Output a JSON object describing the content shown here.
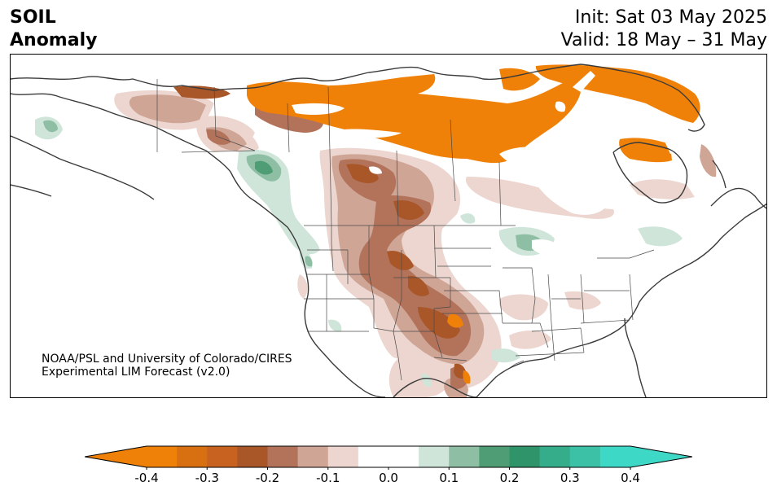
{
  "header": {
    "variable": "SOIL",
    "quantity": "Anomaly",
    "init": "Init: Sat 03 May 2025",
    "valid": "Valid: 18 May – 31 May"
  },
  "credit": {
    "line1": "NOAA/PSL and University of Colorado/CIRES",
    "line2": "Experimental LIM Forecast (v2.0)"
  },
  "colorbar": {
    "levels": [
      -0.4,
      -0.35,
      -0.3,
      -0.25,
      -0.2,
      -0.15,
      -0.1,
      -0.05,
      0.05,
      0.1,
      0.15,
      0.2,
      0.25,
      0.3,
      0.35,
      0.4
    ],
    "colors": [
      "#f08108",
      "#d86f10",
      "#c76220",
      "#a95628",
      "#b3735b",
      "#cfa596",
      "#ecd6cf",
      "#ffffff",
      "#cfe5da",
      "#8ebfa5",
      "#4f9d75",
      "#2f946a",
      "#35ad8a",
      "#3cc1a6",
      "#3dd8c6"
    ],
    "under_color": "#f08108",
    "over_color": "#3dd8c6",
    "ticks": [
      "-0.4",
      "-0.3",
      "-0.2",
      "-0.1",
      "0.0",
      "0.1",
      "0.2",
      "0.3",
      "0.4"
    ]
  },
  "map": {
    "region": "North America",
    "land_fill": "#ffffff",
    "line_color": "#3a3a3a"
  }
}
